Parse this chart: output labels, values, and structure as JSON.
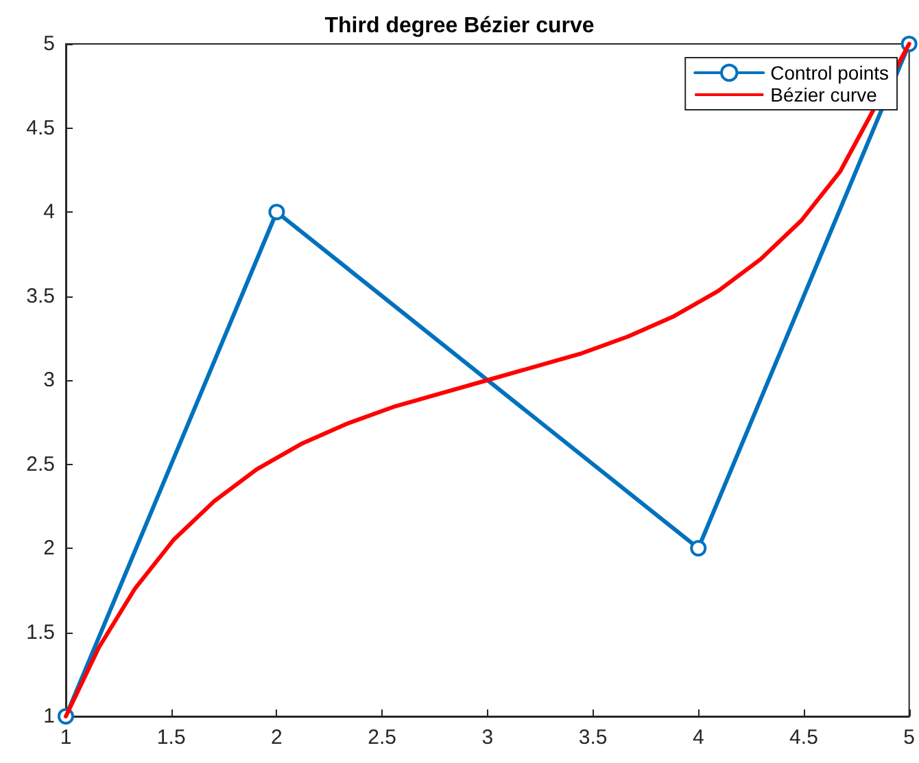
{
  "chart_data": {
    "type": "line",
    "title": "Third degree Bézier curve",
    "series": [
      {
        "name": "Control points",
        "color": "#0072bd",
        "marker": "circle",
        "x": [
          1,
          2,
          4,
          5
        ],
        "values": [
          1,
          4,
          2,
          5
        ]
      },
      {
        "name": "Bézier curve",
        "color": "#ff0000",
        "marker": "none",
        "x": [
          1,
          1.157,
          1.328,
          1.511,
          1.704,
          1.906,
          2.116,
          2.332,
          2.552,
          2.775,
          3,
          3.225,
          3.448,
          3.668,
          3.884,
          4.094,
          4.296,
          4.489,
          4.672,
          4.843,
          5
        ],
        "values": [
          1,
          1.41,
          1.76,
          2.05,
          2.28,
          2.47,
          2.62,
          2.74,
          2.84,
          2.92,
          3,
          3.08,
          3.16,
          3.26,
          3.38,
          3.53,
          3.72,
          3.95,
          4.24,
          null,
          5
        ]
      }
    ],
    "xlim": [
      1,
      5
    ],
    "xticks": [
      1,
      1.5,
      2,
      2.5,
      3,
      3.5,
      4,
      4.5,
      5
    ],
    "ylim": [
      1,
      5
    ],
    "yticks": [
      1,
      1.5,
      2,
      2.5,
      3,
      3.5,
      4,
      4.5,
      5
    ],
    "grid": false,
    "legend": "top right",
    "line_style": "solid"
  }
}
